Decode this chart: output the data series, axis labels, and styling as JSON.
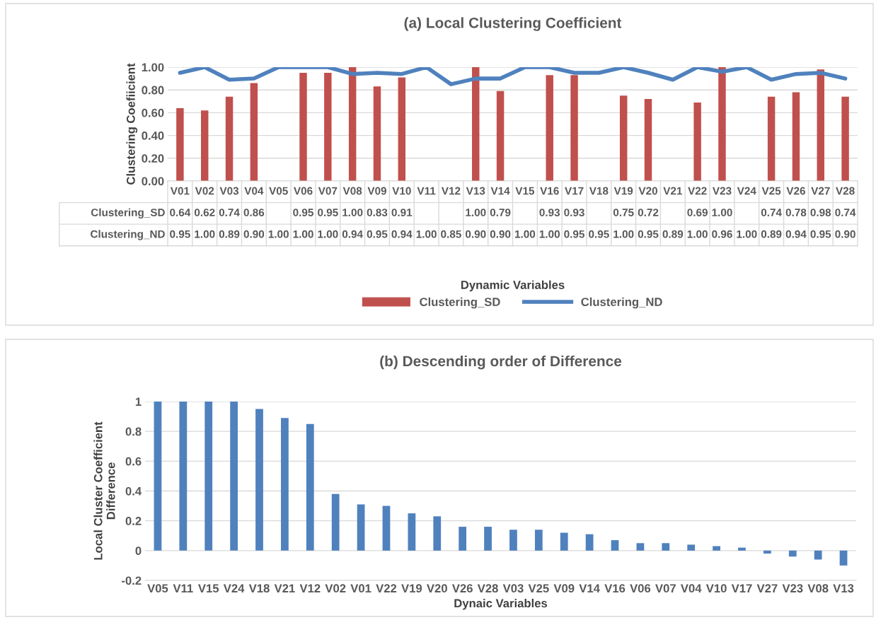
{
  "chart_data": [
    {
      "type": "bar",
      "title": "(a) Local Clustering Coefficient",
      "xlabel": "Dynamic Variables",
      "ylabel": "Clustering Coefiicient",
      "categories": [
        "V01",
        "V02",
        "V03",
        "V04",
        "V05",
        "V06",
        "V07",
        "V08",
        "V09",
        "V10",
        "V11",
        "V12",
        "V13",
        "V14",
        "V15",
        "V16",
        "V17",
        "V18",
        "V19",
        "V20",
        "V21",
        "V22",
        "V23",
        "V24",
        "V25",
        "V26",
        "V27",
        "V28"
      ],
      "series": [
        {
          "name": "Clustering_SD",
          "type": "bar",
          "color": "#c0504d",
          "values": [
            0.64,
            0.62,
            0.74,
            0.86,
            null,
            0.95,
            0.95,
            1.0,
            0.83,
            0.91,
            null,
            null,
            1.0,
            0.79,
            null,
            0.93,
            0.93,
            null,
            0.75,
            0.72,
            null,
            0.69,
            1.0,
            null,
            0.74,
            0.78,
            0.98,
            0.74
          ],
          "value_labels": [
            "0.64",
            "0.62",
            "0.74",
            "0.86",
            null,
            "0.95",
            "0.95",
            "1.00",
            "0.83",
            "0.91",
            null,
            null,
            "1.00",
            "0.79",
            null,
            "0.93",
            "0.93",
            null,
            "0.75",
            "0.72",
            null,
            "0.69",
            "1.00",
            null,
            "0.74",
            "0.78",
            "0.98",
            "0.74"
          ]
        },
        {
          "name": "Clustering_ND",
          "type": "line",
          "color": "#4f81bd",
          "values": [
            0.95,
            1.0,
            0.89,
            0.9,
            1.0,
            1.0,
            1.0,
            0.94,
            0.95,
            0.94,
            1.0,
            0.85,
            0.9,
            0.9,
            1.0,
            1.0,
            0.95,
            0.95,
            1.0,
            0.95,
            0.89,
            1.0,
            0.96,
            1.0,
            0.89,
            0.94,
            0.95,
            0.9
          ],
          "value_labels": [
            "0.95",
            "1.00",
            "0.89",
            "0.90",
            "1.00",
            "1.00",
            "1.00",
            "0.94",
            "0.95",
            "0.94",
            "1.00",
            "0.85",
            "0.90",
            "0.90",
            "1.00",
            "1.00",
            "0.95",
            "0.95",
            "1.00",
            "0.95",
            "0.89",
            "1.00",
            "0.96",
            "1.00",
            "0.89",
            "0.94",
            "0.95",
            "0.90"
          ]
        }
      ],
      "ylim": [
        0,
        1
      ],
      "yticks": [
        {
          "value": 0,
          "label": "0.00"
        },
        {
          "value": 0.2,
          "label": "0.20"
        },
        {
          "value": 0.4,
          "label": "0.40"
        },
        {
          "value": 0.6,
          "label": "0.60"
        },
        {
          "value": 0.8,
          "label": "0.80"
        },
        {
          "value": 1,
          "label": "1.00"
        }
      ],
      "grid": "y",
      "legend": "bottom",
      "marker": "none",
      "line_style": "solid"
    },
    {
      "type": "bar",
      "title": "(b) Descending order of Difference",
      "xlabel": "Dynaic Variables",
      "ylabel": "Local Cluster Coefficient\nDifference",
      "categories": [
        "V05",
        "V11",
        "V15",
        "V24",
        "V18",
        "V21",
        "V12",
        "V02",
        "V01",
        "V22",
        "V19",
        "V20",
        "V26",
        "V28",
        "V03",
        "V25",
        "V09",
        "V14",
        "V16",
        "V06",
        "V07",
        "V04",
        "V10",
        "V17",
        "V27",
        "V23",
        "V08",
        "V13"
      ],
      "values": [
        1.0,
        1.0,
        1.0,
        1.0,
        0.95,
        0.89,
        0.85,
        0.38,
        0.31,
        0.3,
        0.25,
        0.23,
        0.16,
        0.16,
        0.14,
        0.14,
        0.12,
        0.11,
        0.07,
        0.05,
        0.05,
        0.04,
        0.03,
        0.02,
        -0.02,
        -0.04,
        -0.06,
        -0.1
      ],
      "color": "#4f81bd",
      "ylim": [
        -0.2,
        1
      ],
      "yticks": [
        -0.2,
        0,
        0.2,
        0.4,
        0.6,
        0.8,
        1
      ],
      "grid": "y",
      "legend": false
    }
  ]
}
